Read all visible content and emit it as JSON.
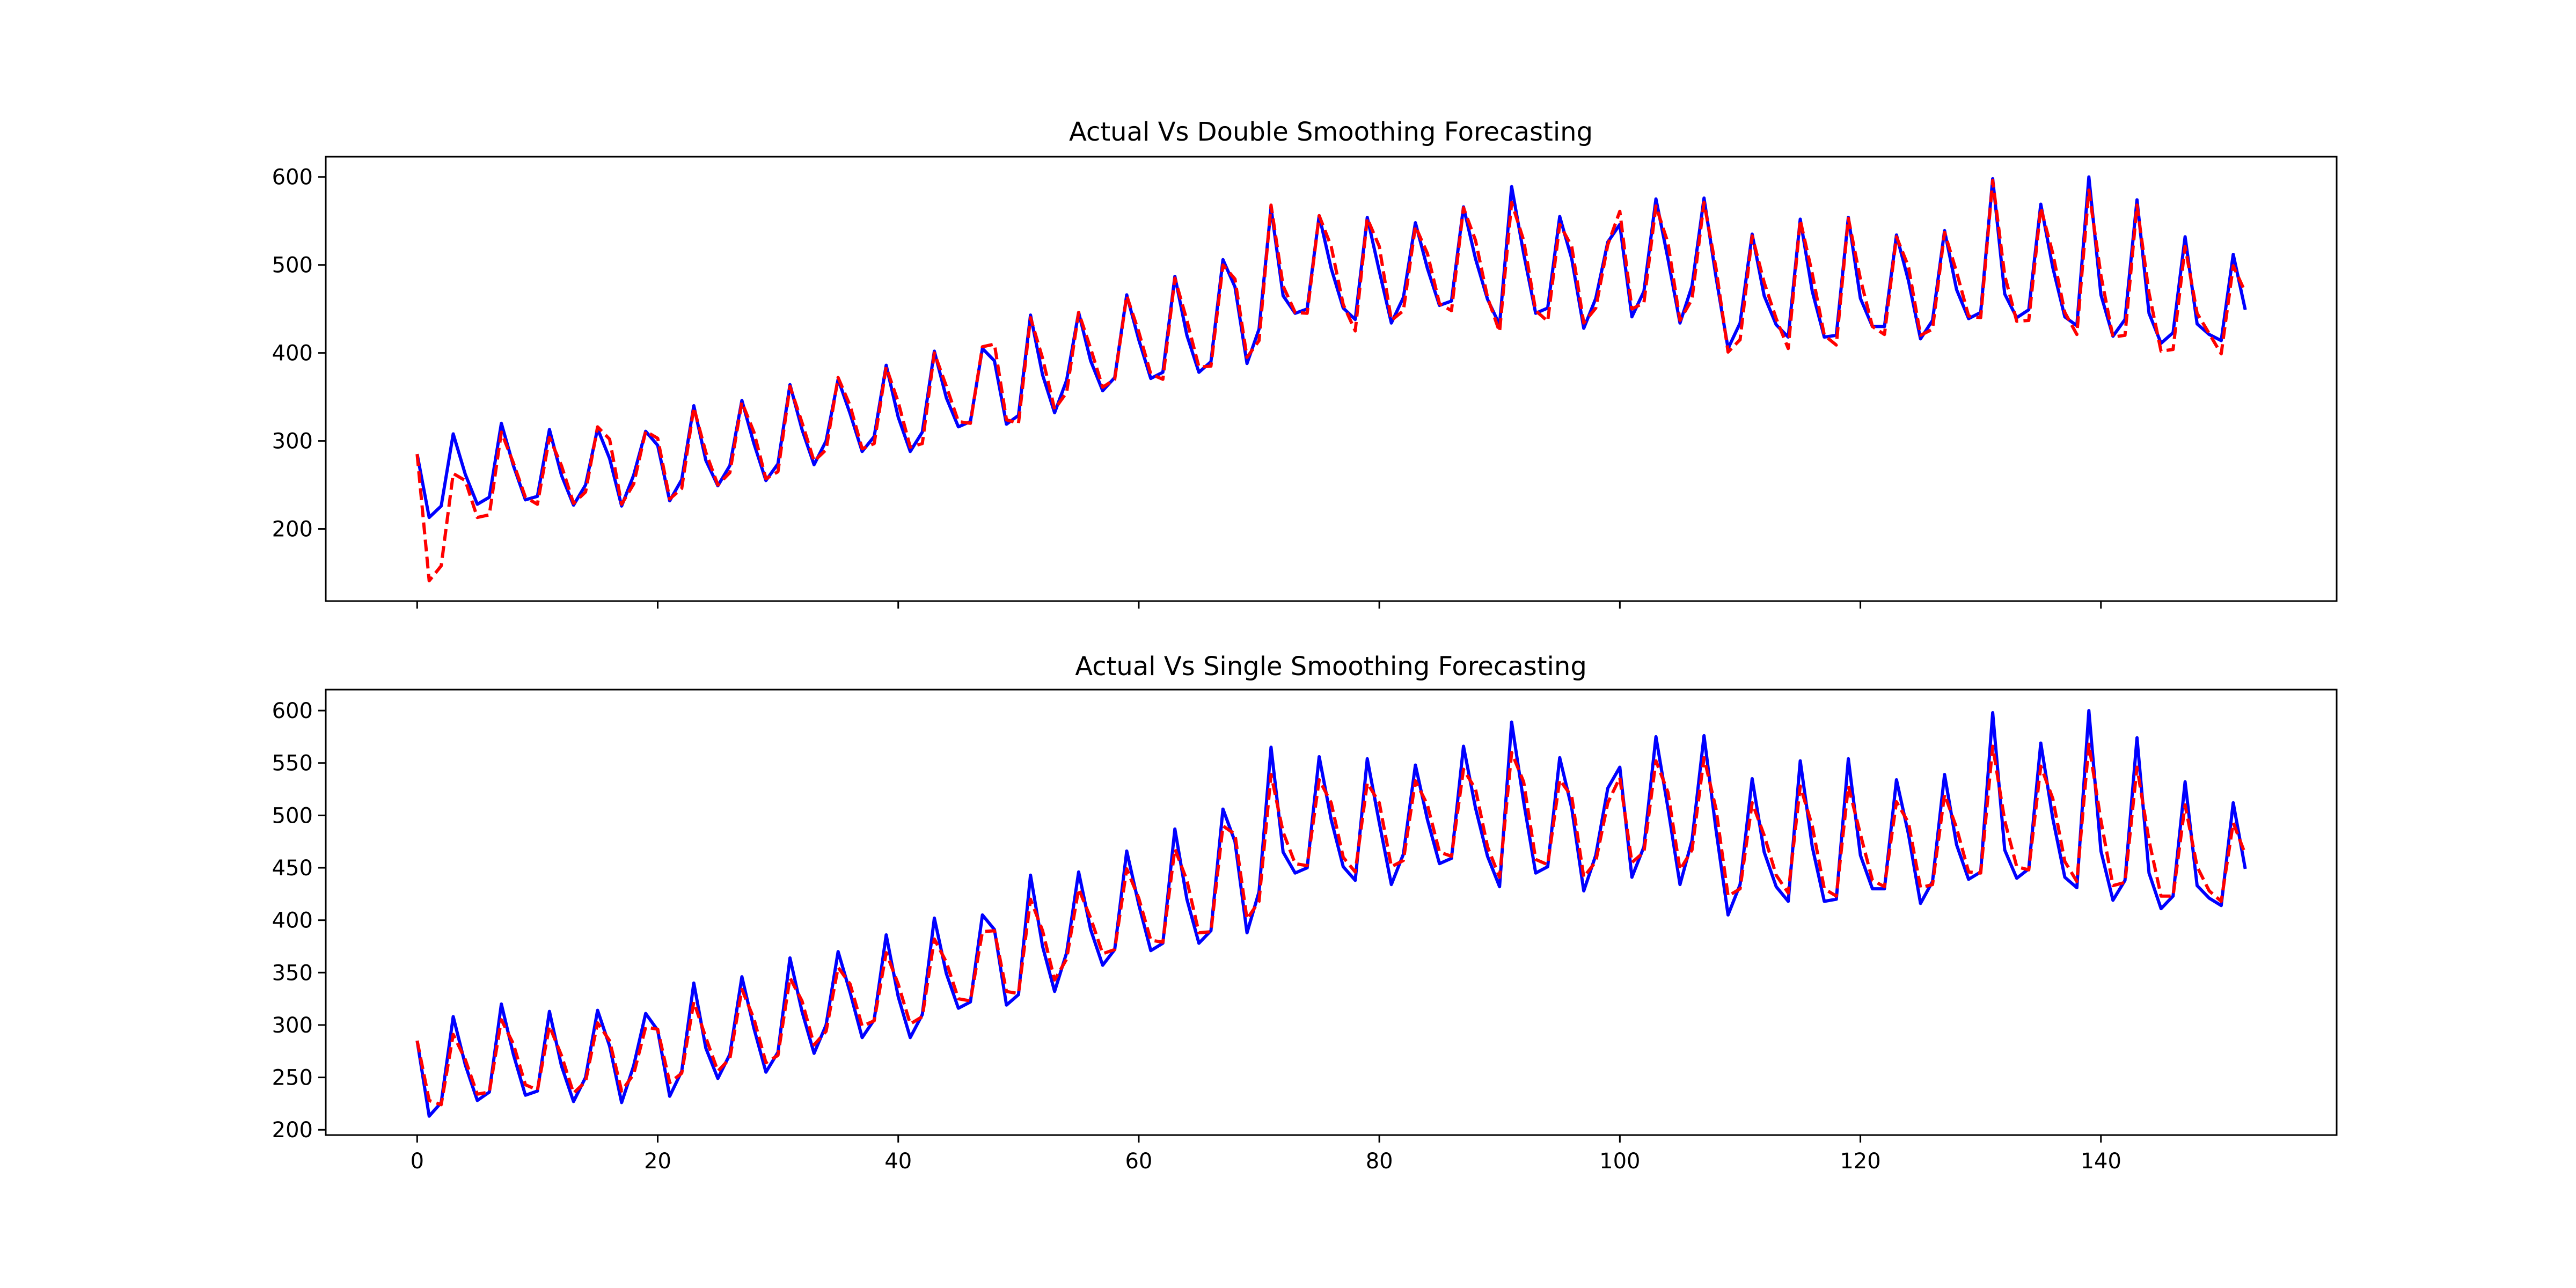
{
  "figure": {
    "background": "#ffffff"
  },
  "chart_data": [
    {
      "type": "line",
      "title": "Actual Vs Double Smoothing Forecasting",
      "xlabel": "",
      "ylabel": "",
      "xlim": [
        -7.6,
        159.6
      ],
      "ylim": [
        118,
        623
      ],
      "xticks": [
        0,
        20,
        40,
        60,
        80,
        100,
        120,
        140
      ],
      "yticks": [
        200,
        300,
        400,
        500,
        600
      ],
      "show_x_tick_labels": false,
      "grid": false,
      "legend": "none",
      "series": [
        {
          "color": "#0000ff",
          "style": "solid",
          "x_start": 0,
          "values": [
            285,
            213,
            226,
            308,
            262,
            228,
            236,
            320,
            272,
            233,
            237,
            313,
            261,
            227,
            250,
            314,
            280,
            226,
            261,
            311,
            295,
            232,
            256,
            340,
            278,
            249,
            272,
            346,
            297,
            255,
            274,
            364,
            313,
            273,
            300,
            370,
            331,
            288,
            305,
            386,
            327,
            288,
            310,
            402,
            349,
            316,
            322,
            405,
            391,
            319,
            329,
            443,
            375,
            332,
            369,
            446,
            391,
            357,
            372,
            466,
            415,
            371,
            378,
            487,
            420,
            378,
            390,
            506,
            475,
            388,
            427,
            565,
            465,
            445,
            450,
            556,
            496,
            451,
            438,
            554,
            493,
            434,
            463,
            548,
            496,
            454,
            459,
            566,
            507,
            461,
            432,
            589,
            513,
            445,
            451,
            555,
            507,
            428,
            462,
            526,
            546,
            441,
            470,
            575,
            507,
            434,
            476,
            576,
            486,
            405,
            434,
            535,
            465,
            432,
            418,
            552,
            470,
            418,
            420,
            554,
            462,
            430,
            430,
            534,
            482,
            416,
            437,
            539,
            472,
            439,
            446,
            598,
            467,
            440,
            449,
            569,
            497,
            441,
            431,
            600,
            466,
            419,
            438,
            574,
            445,
            411,
            423,
            532,
            433,
            421,
            414,
            512,
            449
          ]
        },
        {
          "color": "#ff0000",
          "style": "dashed",
          "x_start": 0,
          "values": [
            285,
            141,
            158,
            263,
            255,
            213,
            216,
            310,
            275,
            236,
            228,
            304,
            272,
            229,
            242,
            316,
            302,
            228,
            251,
            311,
            303,
            234,
            246,
            338,
            287,
            250,
            264,
            344,
            310,
            257,
            265,
            362,
            321,
            277,
            290,
            372,
            340,
            291,
            297,
            384,
            344,
            293,
            297,
            400,
            362,
            322,
            320,
            407,
            410,
            324,
            320,
            440,
            394,
            336,
            355,
            446,
            405,
            361,
            370,
            465,
            424,
            376,
            370,
            485,
            437,
            384,
            385,
            500,
            484,
            395,
            414,
            568,
            476,
            446,
            445,
            556,
            521,
            455,
            425,
            553,
            521,
            437,
            448,
            544,
            513,
            456,
            448,
            565,
            528,
            463,
            424,
            571,
            528,
            448,
            436,
            546,
            521,
            434,
            451,
            523,
            561,
            450,
            457,
            567,
            525,
            437,
            461,
            571,
            496,
            401,
            415,
            533,
            480,
            439,
            405,
            551,
            490,
            420,
            409,
            553,
            484,
            430,
            421,
            532,
            498,
            420,
            427,
            537,
            492,
            442,
            440,
            596,
            488,
            436,
            437,
            565,
            513,
            446,
            421,
            585,
            488,
            418,
            420,
            568,
            468,
            402,
            404,
            521,
            445,
            422,
            399,
            499,
            469
          ]
        }
      ]
    },
    {
      "type": "line",
      "title": "Actual Vs Single Smoothing Forecasting",
      "xlabel": "",
      "ylabel": "",
      "xlim": [
        -7.6,
        159.6
      ],
      "ylim": [
        195,
        620
      ],
      "xticks": [
        0,
        20,
        40,
        60,
        80,
        100,
        120,
        140
      ],
      "xtick_labels": [
        "0",
        "20",
        "40",
        "60",
        "80",
        "100",
        "120",
        "140"
      ],
      "yticks": [
        200,
        250,
        300,
        350,
        400,
        450,
        500,
        550,
        600
      ],
      "show_x_tick_labels": true,
      "grid": false,
      "legend": "none",
      "series": [
        {
          "color": "#0000ff",
          "style": "solid",
          "x_start": 0,
          "values": [
            285,
            213,
            226,
            308,
            262,
            228,
            236,
            320,
            272,
            233,
            237,
            313,
            261,
            227,
            250,
            314,
            280,
            226,
            261,
            311,
            295,
            232,
            256,
            340,
            278,
            249,
            272,
            346,
            297,
            255,
            274,
            364,
            313,
            273,
            300,
            370,
            331,
            288,
            305,
            386,
            327,
            288,
            310,
            402,
            349,
            316,
            322,
            405,
            391,
            319,
            329,
            443,
            375,
            332,
            369,
            446,
            391,
            357,
            372,
            466,
            415,
            371,
            378,
            487,
            420,
            378,
            390,
            506,
            475,
            388,
            427,
            565,
            465,
            445,
            450,
            556,
            496,
            451,
            438,
            554,
            493,
            434,
            463,
            548,
            496,
            454,
            459,
            566,
            507,
            461,
            432,
            589,
            513,
            445,
            451,
            555,
            507,
            428,
            462,
            526,
            546,
            441,
            470,
            575,
            507,
            434,
            476,
            576,
            486,
            405,
            434,
            535,
            465,
            432,
            418,
            552,
            470,
            418,
            420,
            554,
            462,
            430,
            430,
            534,
            482,
            416,
            437,
            539,
            472,
            439,
            446,
            598,
            467,
            440,
            449,
            569,
            497,
            441,
            431,
            600,
            466,
            419,
            438,
            574,
            445,
            411,
            423,
            532,
            433,
            421,
            414,
            512,
            449
          ]
        },
        {
          "color": "#ff0000",
          "style": "dashed",
          "x_start": 0,
          "values": [
            285,
            228,
            224,
            291,
            267,
            234,
            236,
            305,
            282,
            243,
            238,
            299,
            271,
            235,
            246,
            302,
            285,
            237,
            253,
            298,
            296,
            245,
            254,
            322,
            288,
            256,
            268,
            334,
            306,
            264,
            271,
            345,
            323,
            281,
            294,
            355,
            339,
            299,
            304,
            369,
            339,
            301,
            308,
            382,
            360,
            325,
            323,
            389,
            390,
            332,
            330,
            420,
            390,
            343,
            363,
            430,
            402,
            368,
            372,
            449,
            421,
            381,
            379,
            468,
            438,
            388,
            389,
            490,
            482,
            401,
            418,
            539,
            484,
            454,
            452,
            534,
            512,
            460,
            446,
            531,
            512,
            451,
            457,
            533,
            510,
            465,
            461,
            544,
            525,
            470,
            441,
            560,
            532,
            458,
            453,
            534,
            518,
            441,
            456,
            512,
            536,
            455,
            465,
            552,
            522,
            448,
            467,
            555,
            506,
            423,
            430,
            512,
            481,
            443,
            426,
            528,
            490,
            430,
            423,
            528,
            482,
            438,
            432,
            513,
            493,
            431,
            434,
            520,
            488,
            446,
            445,
            566,
            495,
            451,
            448,
            547,
            516,
            456,
            437,
            568,
            495,
            433,
            436,
            546,
            476,
            423,
            423,
            510,
            451,
            428,
            418,
            493,
            463
          ]
        }
      ]
    }
  ]
}
